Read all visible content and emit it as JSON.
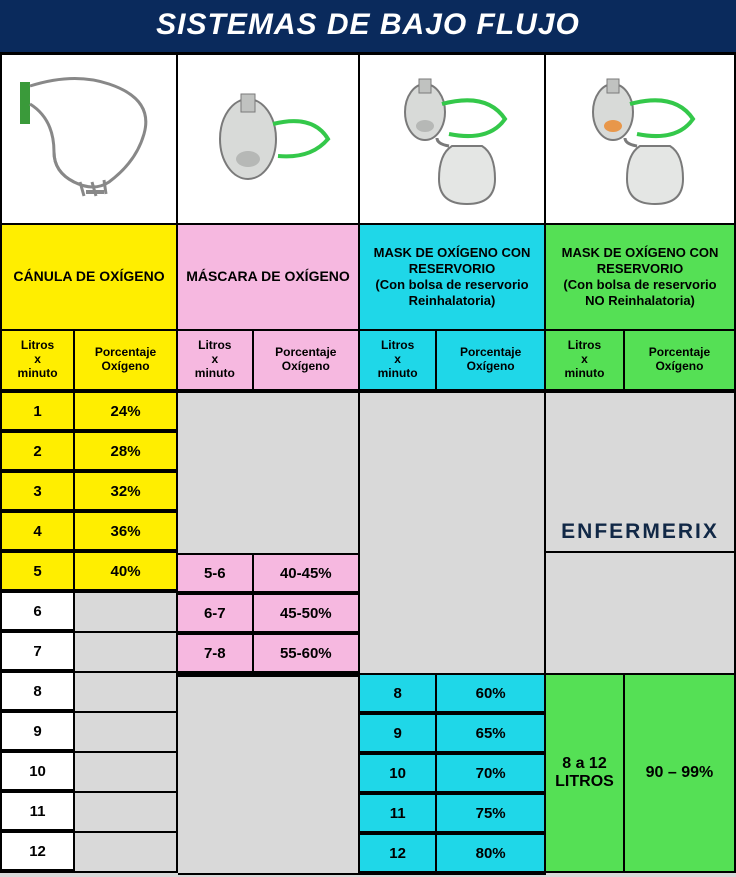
{
  "title": "SISTEMAS  DE  BAJO FLUJO",
  "watermark": "ENFERMERIX",
  "headers": {
    "litros": "Litros\nx\nminuto",
    "porc": "Porcentaje\nOxígeno"
  },
  "colors": {
    "title_bg": "#0a2a5c",
    "title_fg": "#ffffff",
    "yellow": "#ffee00",
    "pink": "#f6b8e0",
    "cyan": "#1fd7e8",
    "green": "#55e055",
    "gray": "#d9d9d9",
    "white": "#ffffff",
    "border": "#000000",
    "watermark_fg": "#112846"
  },
  "columns": [
    {
      "id": "canula",
      "name": "CÁNULA DE OXÍGENO",
      "theme": "yellow",
      "rows": [
        {
          "l": "1",
          "p": "24%",
          "fill": "yellow"
        },
        {
          "l": "2",
          "p": "28%",
          "fill": "yellow"
        },
        {
          "l": "3",
          "p": "32%",
          "fill": "yellow"
        },
        {
          "l": "4",
          "p": "36%",
          "fill": "yellow"
        },
        {
          "l": "5",
          "p": "40%",
          "fill": "yellow"
        },
        {
          "l": "6",
          "p": "",
          "fill": "white"
        },
        {
          "l": "7",
          "p": "",
          "fill": "white"
        },
        {
          "l": "8",
          "p": "",
          "fill": "white"
        },
        {
          "l": "9",
          "p": "",
          "fill": "white"
        },
        {
          "l": "10",
          "p": "",
          "fill": "white"
        },
        {
          "l": "11",
          "p": "",
          "fill": "white"
        },
        {
          "l": "12",
          "p": "",
          "fill": "white"
        }
      ]
    },
    {
      "id": "mascara",
      "name": "MÁSCARA DE OXÍGENO",
      "theme": "pink",
      "blank_before": 4,
      "rows": [
        {
          "l": "5-6",
          "p": "40-45%",
          "fill": "pink"
        },
        {
          "l": "6-7",
          "p": "45-50%",
          "fill": "pink"
        },
        {
          "l": "7-8",
          "p": "55-60%",
          "fill": "pink"
        }
      ],
      "blank_after": 5
    },
    {
      "id": "reservorio_re",
      "name": "MASK DE OXÍGENO CON RESERVORIO\n(Con bolsa de reservorio Reinhalatoria)",
      "theme": "cyan",
      "blank_before": 7,
      "rows": [
        {
          "l": "8",
          "p": "60%",
          "fill": "cyan"
        },
        {
          "l": "9",
          "p": "65%",
          "fill": "cyan"
        },
        {
          "l": "10",
          "p": "70%",
          "fill": "cyan"
        },
        {
          "l": "11",
          "p": "75%",
          "fill": "cyan"
        },
        {
          "l": "12",
          "p": "80%",
          "fill": "cyan"
        }
      ]
    },
    {
      "id": "reservorio_no",
      "name": "MASK DE OXÍGENO CON RESERVORIO\n(Con bolsa de reservorio NO Reinhalatoria)",
      "theme": "green",
      "blank_before": 3,
      "watermark_row": true,
      "blank_mid": 3,
      "summary": {
        "l": "8 a 12 LITROS",
        "p": "90 – 99%"
      }
    }
  ]
}
